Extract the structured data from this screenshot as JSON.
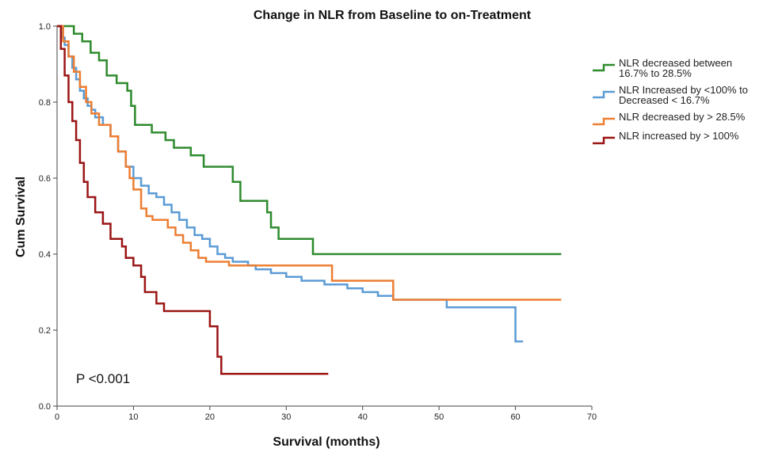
{
  "chart_data": {
    "type": "line",
    "title": "Change in NLR from Baseline to on-Treatment",
    "xlabel": "Survival (months)",
    "ylabel": "Cum Survival",
    "xlim": [
      0,
      70
    ],
    "ylim": [
      0,
      1.0
    ],
    "x_ticks": [
      "0",
      "10",
      "20",
      "30",
      "40",
      "50",
      "60",
      "70"
    ],
    "y_ticks": [
      "0.0",
      "0.2",
      "0.4",
      "0.6",
      "0.8",
      "1.0"
    ],
    "grid": false,
    "legend_position": "right",
    "annotation": "P <0.001",
    "step": true,
    "series": [
      {
        "name": "NLR decreased between 16.7% to 28.5%",
        "legend_lines": [
          "NLR decreased between",
          "16.7% to 28.5%"
        ],
        "color": "#2e8b2e",
        "x": [
          0,
          2.2,
          3.3,
          4.4,
          5.5,
          6.5,
          7.8,
          9.2,
          9.7,
          10.2,
          12.4,
          14.2,
          15.3,
          17.5,
          19.2,
          21.5,
          23.0,
          24.0,
          27.5,
          28.0,
          29.0,
          33.5,
          66.0
        ],
        "y": [
          1.0,
          0.98,
          0.96,
          0.93,
          0.91,
          0.87,
          0.85,
          0.83,
          0.79,
          0.74,
          0.72,
          0.7,
          0.68,
          0.66,
          0.63,
          0.63,
          0.59,
          0.54,
          0.51,
          0.47,
          0.44,
          0.4,
          0.4
        ]
      },
      {
        "name": "NLR Increased by <100% to Decreased < 16.7%",
        "legend_lines": [
          "NLR Increased by <100% to",
          "Decreased < 16.7%"
        ],
        "color": "#5b9bd5",
        "x": [
          0,
          0.6,
          1.0,
          1.5,
          2.0,
          2.5,
          3.0,
          3.5,
          4.0,
          4.5,
          5.0,
          6.0,
          7.0,
          8.0,
          9.0,
          10.0,
          11.0,
          12.0,
          13.0,
          14.0,
          15.0,
          16.0,
          17.0,
          18.0,
          19.0,
          20.0,
          21.0,
          22.0,
          23.0,
          25.0,
          26.0,
          28.0,
          30.0,
          32.0,
          35.0,
          38.0,
          40.0,
          42.0,
          44.0,
          51.0,
          60.0,
          61.0
        ],
        "y": [
          1.0,
          0.97,
          0.95,
          0.92,
          0.89,
          0.86,
          0.83,
          0.81,
          0.79,
          0.78,
          0.76,
          0.74,
          0.71,
          0.67,
          0.63,
          0.6,
          0.58,
          0.56,
          0.55,
          0.53,
          0.51,
          0.49,
          0.47,
          0.45,
          0.44,
          0.42,
          0.4,
          0.39,
          0.38,
          0.37,
          0.36,
          0.35,
          0.34,
          0.33,
          0.32,
          0.31,
          0.3,
          0.29,
          0.28,
          0.26,
          0.17,
          0.17
        ]
      },
      {
        "name": "NLR decreased by > 28.5%",
        "legend_lines": [
          "NLR decreased by > 28.5%"
        ],
        "color": "#ed7d31",
        "x": [
          0,
          0.8,
          1.5,
          2.2,
          3.0,
          3.8,
          4.5,
          5.5,
          7.0,
          8.0,
          9.0,
          9.5,
          10.0,
          11.0,
          11.7,
          12.5,
          14.5,
          15.5,
          16.5,
          17.5,
          18.5,
          19.5,
          22.5,
          36.0,
          44.0,
          66.0
        ],
        "y": [
          1.0,
          0.96,
          0.92,
          0.88,
          0.84,
          0.8,
          0.77,
          0.74,
          0.71,
          0.67,
          0.63,
          0.6,
          0.57,
          0.52,
          0.5,
          0.49,
          0.47,
          0.45,
          0.43,
          0.41,
          0.39,
          0.38,
          0.37,
          0.33,
          0.28,
          0.28
        ]
      },
      {
        "name": "NLR increased by > 100%",
        "legend_lines": [
          "NLR increased by > 100%"
        ],
        "color": "#9b1414",
        "x": [
          0,
          0.5,
          1.0,
          1.5,
          2.0,
          2.5,
          3.0,
          3.5,
          4.0,
          5.0,
          6.0,
          7.0,
          8.5,
          9.0,
          10.0,
          11.0,
          11.5,
          13.0,
          14.0,
          20.0,
          21.0,
          21.5,
          35.5
        ],
        "y": [
          1.0,
          0.94,
          0.87,
          0.8,
          0.75,
          0.7,
          0.64,
          0.59,
          0.55,
          0.51,
          0.48,
          0.44,
          0.42,
          0.39,
          0.37,
          0.34,
          0.3,
          0.27,
          0.25,
          0.21,
          0.13,
          0.085,
          0.085
        ]
      }
    ]
  }
}
